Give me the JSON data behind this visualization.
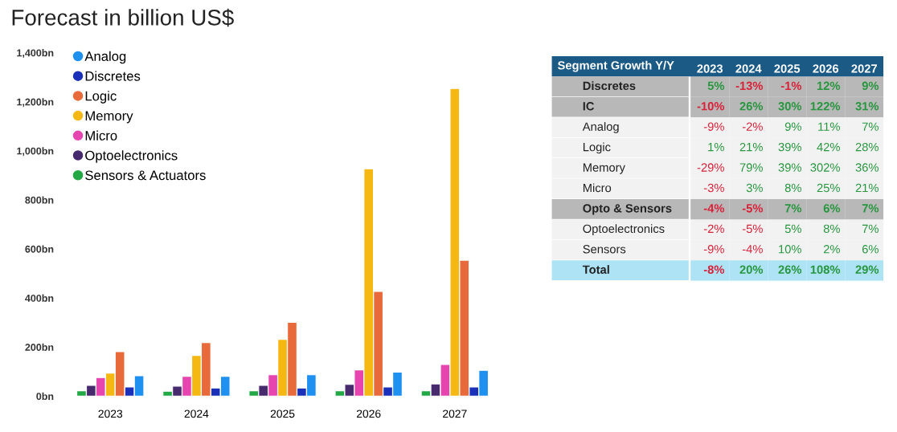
{
  "chart_data": [
    {
      "type": "bar",
      "title": "Forecast in billion US$",
      "categories": [
        "2023",
        "2024",
        "2025",
        "2026",
        "2027"
      ],
      "series": [
        {
          "name": "Sensors & Actuators",
          "color": "#22a845",
          "values": [
            22,
            20,
            22,
            22,
            22
          ]
        },
        {
          "name": "Optoelectronics",
          "color": "#47296e",
          "values": [
            44,
            41,
            44,
            48,
            50
          ]
        },
        {
          "name": "Micro",
          "color": "#e645b0",
          "values": [
            76,
            81,
            87,
            107,
            129
          ]
        },
        {
          "name": "Memory",
          "color": "#f5b712",
          "values": [
            94,
            166,
            231,
            927,
            1254
          ]
        },
        {
          "name": "Logic",
          "color": "#e8693a",
          "values": [
            181,
            218,
            301,
            427,
            554
          ]
        },
        {
          "name": "Discretes",
          "color": "#1a30b8",
          "values": [
            37,
            33,
            33,
            37,
            37
          ]
        },
        {
          "name": "Analog",
          "color": "#1e90f0",
          "values": [
            83,
            81,
            87,
            98,
            105
          ]
        }
      ],
      "ylim": [
        0,
        1400
      ],
      "yticks": [
        {
          "value": 0,
          "label": "0bn"
        },
        {
          "value": 200,
          "label": "200bn"
        },
        {
          "value": 400,
          "label": "400bn"
        },
        {
          "value": 600,
          "label": "600bn"
        },
        {
          "value": 800,
          "label": "800bn"
        },
        {
          "value": 1000,
          "label": "1,000bn"
        },
        {
          "value": 1200,
          "label": "1,200bn"
        },
        {
          "value": 1400,
          "label": "1,400bn"
        }
      ],
      "grid": false,
      "legend": "top left"
    },
    {
      "type": "heatmap",
      "title": "Segment Growth Y/Y",
      "categories": [
        "2023",
        "2024",
        "2025",
        "2026",
        "2027"
      ],
      "y_categories": [
        "Discretes",
        "IC",
        "Analog",
        "Logic",
        "Memory",
        "Micro",
        "Opto & Sensors",
        "Optoelectronics",
        "Sensors",
        "Total"
      ],
      "colors": [
        "#b8b8b8",
        "#b8b8b8",
        "#f2f2f2",
        "#f2f2f2",
        "#f2f2f2",
        "#f2f2f2",
        "#b8b8b8",
        "#f2f2f2",
        "#f2f2f2",
        "#aee2f5"
      ],
      "cells": [
        [
          5,
          -13,
          -1,
          12,
          9
        ],
        [
          -10,
          26,
          30,
          122,
          31
        ],
        [
          -9,
          -2,
          9,
          11,
          7
        ],
        [
          1,
          21,
          39,
          42,
          28
        ],
        [
          -29,
          79,
          39,
          302,
          36
        ],
        [
          -3,
          3,
          8,
          25,
          21
        ],
        [
          -4,
          -5,
          7,
          6,
          7
        ],
        [
          -2,
          -5,
          5,
          8,
          7
        ],
        [
          -9,
          -4,
          10,
          2,
          6
        ],
        [
          -8,
          20,
          26,
          108,
          29
        ]
      ],
      "cell_labels": [
        [
          "5%",
          "-13%",
          "-1%",
          "12%",
          "9%"
        ],
        [
          "-10%",
          "26%",
          "30%",
          "122%",
          "31%"
        ],
        [
          "-9%",
          "-2%",
          "9%",
          "11%",
          "7%"
        ],
        [
          "1%",
          "21%",
          "39%",
          "42%",
          "28%"
        ],
        [
          "-29%",
          "79%",
          "39%",
          "302%",
          "36%"
        ],
        [
          "-3%",
          "3%",
          "8%",
          "25%",
          "21%"
        ],
        [
          "-4%",
          "-5%",
          "7%",
          "6%",
          "7%"
        ],
        [
          "-2%",
          "-5%",
          "5%",
          "8%",
          "7%"
        ],
        [
          "-9%",
          "-4%",
          "10%",
          "2%",
          "6%"
        ],
        [
          "-8%",
          "20%",
          "26%",
          "108%",
          "29%"
        ]
      ]
    }
  ]
}
